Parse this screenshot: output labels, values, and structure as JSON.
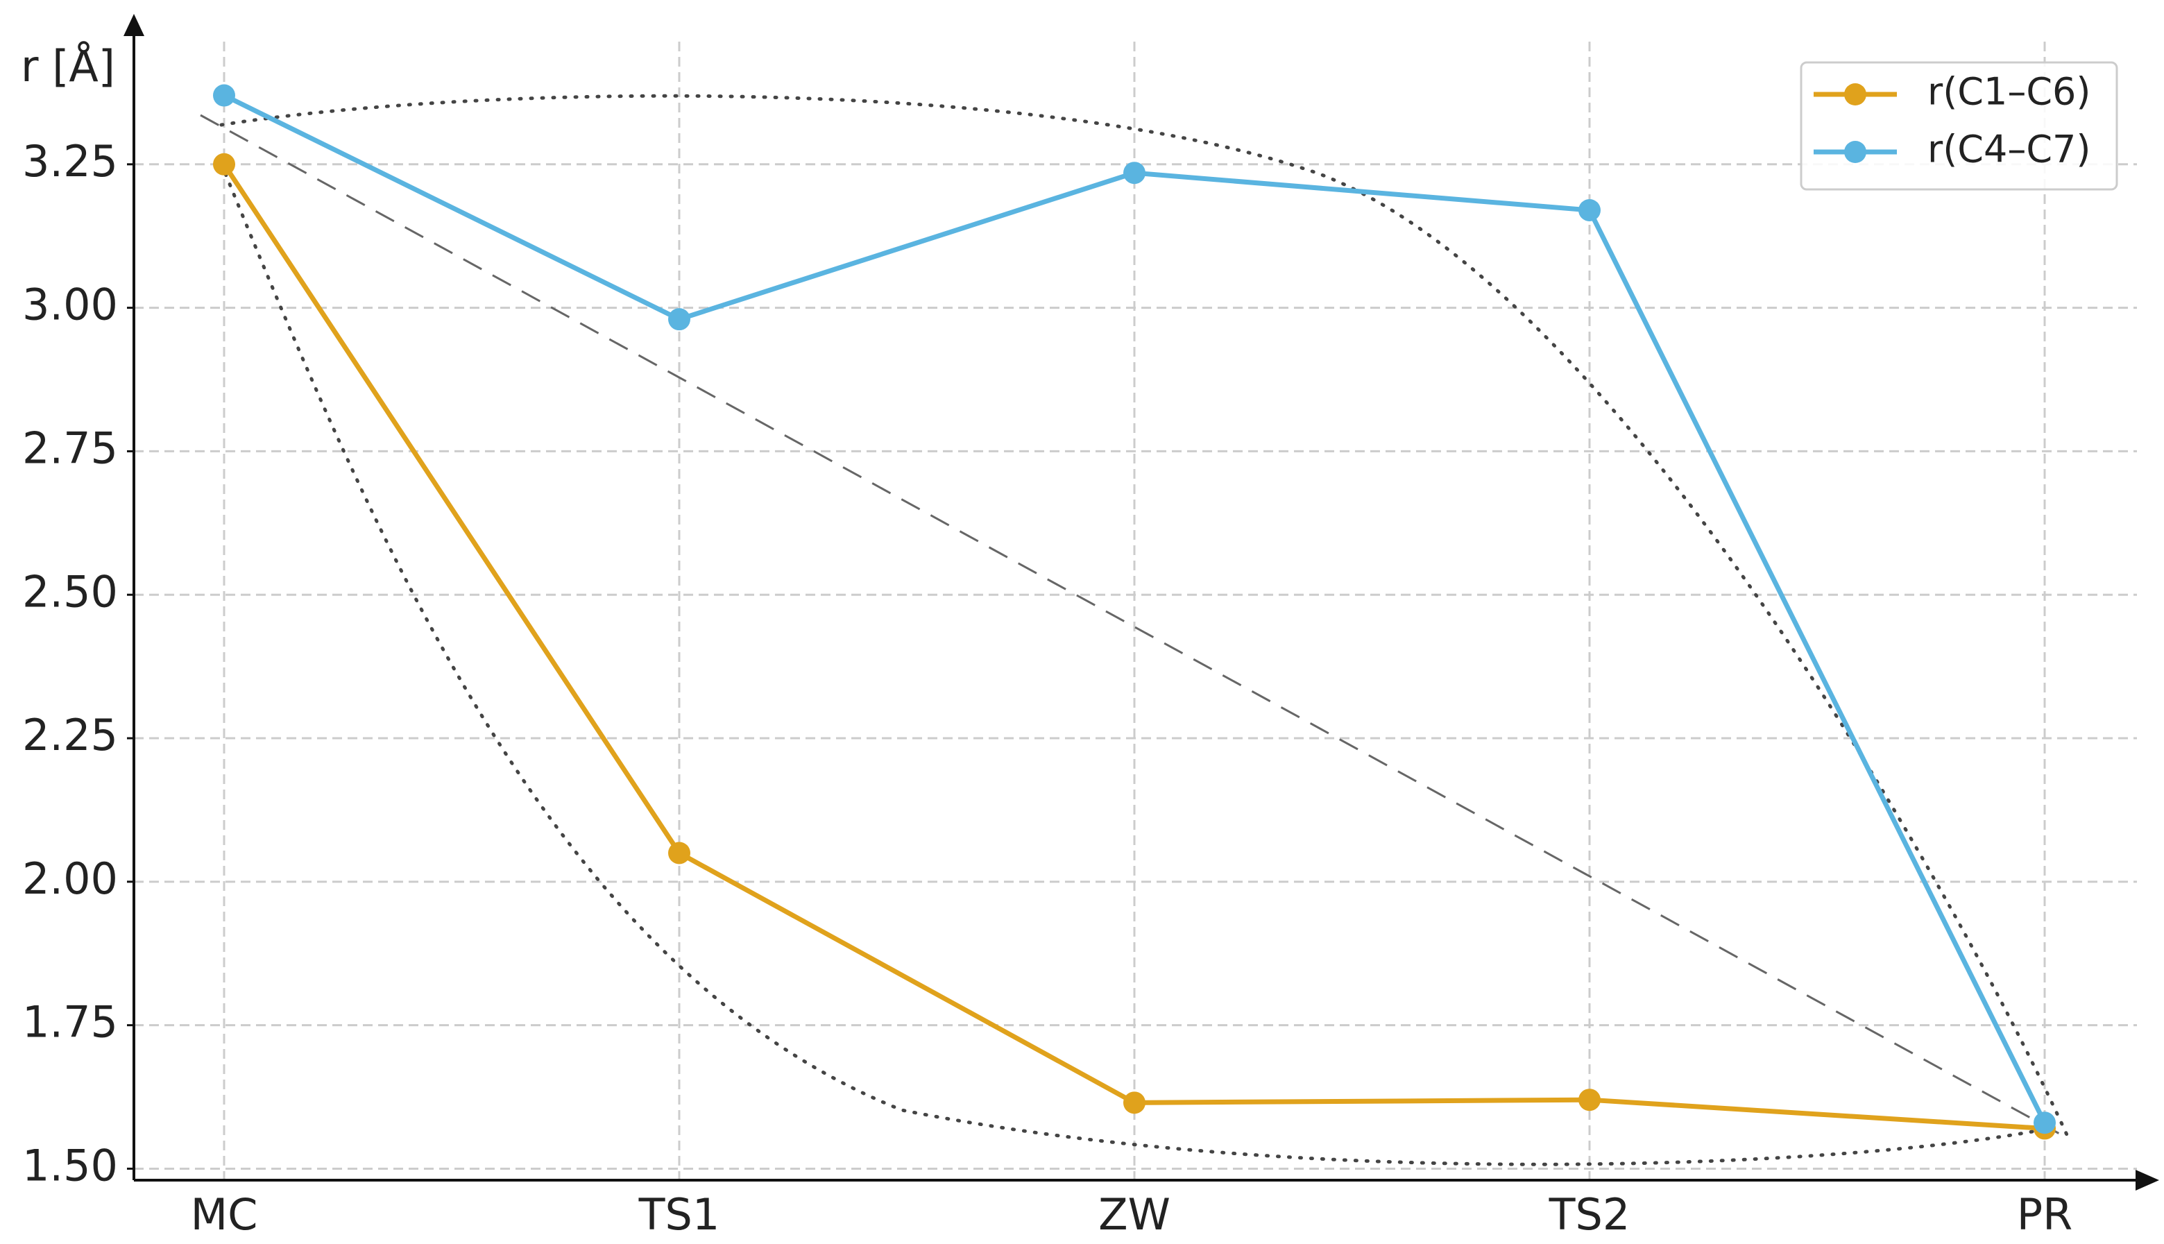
{
  "chart_data": {
    "type": "line",
    "y_label": "r [Å]",
    "categories": [
      "MC",
      "TS1",
      "ZW",
      "TS2",
      "PR"
    ],
    "series": [
      {
        "name": "r(C1–C6)",
        "color": "#e0a21c",
        "values": [
          3.25,
          2.05,
          1.615,
          1.62,
          1.57
        ]
      },
      {
        "name": "r(C4–C7)",
        "color": "#5ab4e0",
        "values": [
          3.37,
          2.98,
          3.235,
          3.17,
          1.58
        ]
      }
    ],
    "ylim": [
      1.48,
      3.5
    ],
    "yticks": [
      {
        "value": 1.5,
        "label": "1.50"
      },
      {
        "value": 1.75,
        "label": "1.75"
      },
      {
        "value": 2.0,
        "label": "2.00"
      },
      {
        "value": 2.25,
        "label": "2.25"
      },
      {
        "value": 2.5,
        "label": "2.50"
      },
      {
        "value": 2.75,
        "label": "2.75"
      },
      {
        "value": 3.0,
        "label": "3.00"
      },
      {
        "value": 3.25,
        "label": "3.25"
      }
    ],
    "grid": true,
    "legend": "upper right"
  }
}
